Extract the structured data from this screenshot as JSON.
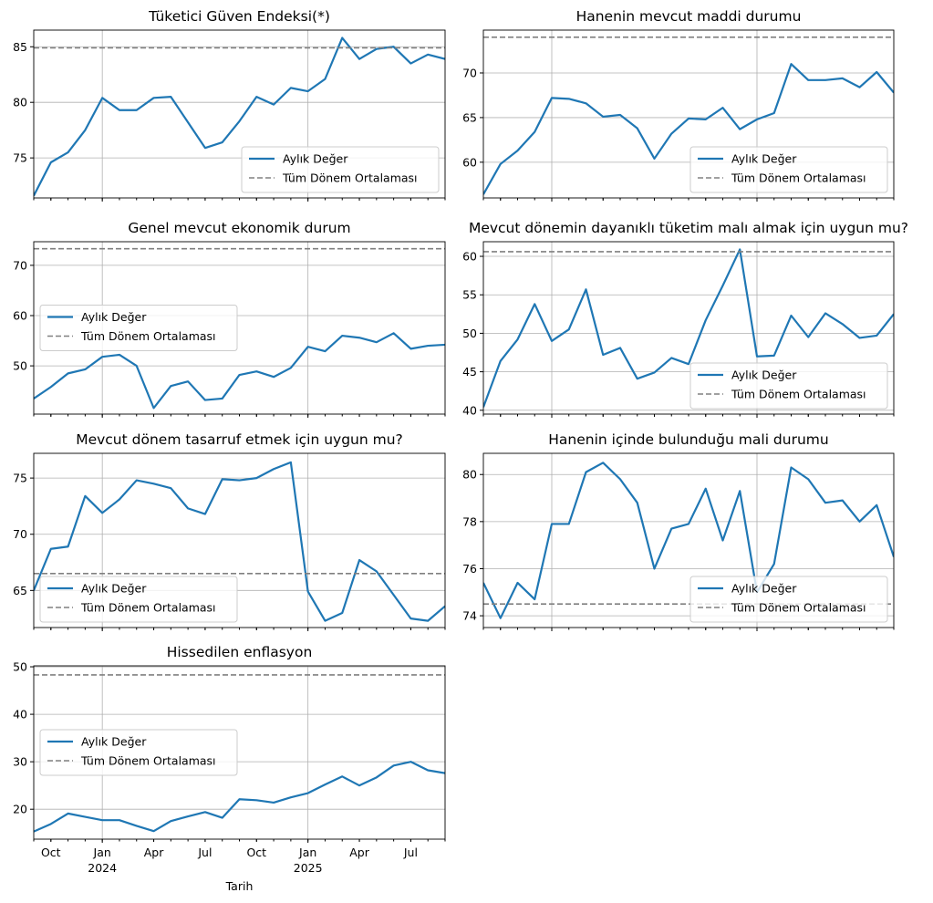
{
  "chart_data": [
    {
      "type": "line",
      "title": "Tüketici Güven Endeksi(*)",
      "x": [
        "2023-09",
        "2023-10",
        "2023-11",
        "2023-12",
        "2024-01",
        "2024-02",
        "2024-03",
        "2024-04",
        "2024-05",
        "2024-06",
        "2024-07",
        "2024-08",
        "2024-09",
        "2024-10",
        "2024-11",
        "2024-12",
        "2025-01",
        "2025-02",
        "2025-03",
        "2025-04",
        "2025-05",
        "2025-06",
        "2025-07",
        "2025-08",
        "2025-09"
      ],
      "xlim": [
        "2023-09",
        "2025-09"
      ],
      "series": [
        {
          "name": "Aylık Değer",
          "color": "#1f77b4",
          "values": [
            71.6,
            74.6,
            75.5,
            77.5,
            80.4,
            79.3,
            79.3,
            80.4,
            80.5,
            78.2,
            75.9,
            76.4,
            78.3,
            80.5,
            79.8,
            81.3,
            81.0,
            82.1,
            85.8,
            83.9,
            84.8,
            85.0,
            83.5,
            84.3,
            83.9
          ]
        },
        {
          "name": "Tüm Dönem Ortalaması",
          "color": "#808080",
          "dash": true,
          "value": 84.9
        }
      ],
      "ylim": [
        71.4,
        86.5
      ],
      "yticks": [
        75,
        80,
        85
      ],
      "grid": true,
      "legend": "lower right"
    },
    {
      "type": "line",
      "title": "Hanenin mevcut maddi durumu",
      "x": [
        "2023-09",
        "2023-10",
        "2023-11",
        "2023-12",
        "2024-01",
        "2024-02",
        "2024-03",
        "2024-04",
        "2024-05",
        "2024-06",
        "2024-07",
        "2024-08",
        "2024-09",
        "2024-10",
        "2024-11",
        "2024-12",
        "2025-01",
        "2025-02",
        "2025-03",
        "2025-04",
        "2025-05",
        "2025-06",
        "2025-07",
        "2025-08",
        "2025-09"
      ],
      "xlim": [
        "2023-09",
        "2025-09"
      ],
      "series": [
        {
          "name": "Aylık Değer",
          "color": "#1f77b4",
          "values": [
            56.4,
            59.8,
            61.3,
            63.4,
            67.2,
            67.1,
            66.6,
            65.1,
            65.3,
            63.8,
            60.4,
            63.2,
            64.9,
            64.8,
            66.1,
            63.7,
            64.8,
            65.5,
            71.0,
            69.2,
            69.2,
            69.4,
            68.4,
            70.1,
            67.8
          ]
        },
        {
          "name": "Tüm Dönem Ortalaması",
          "color": "#808080",
          "dash": true,
          "value": 74.0
        }
      ],
      "ylim": [
        56.0,
        74.8
      ],
      "yticks": [
        60,
        65,
        70
      ],
      "grid": true,
      "legend": "lower right"
    },
    {
      "type": "line",
      "title": "Genel mevcut ekonomik durum",
      "x": [
        "2023-09",
        "2023-10",
        "2023-11",
        "2023-12",
        "2024-01",
        "2024-02",
        "2024-03",
        "2024-04",
        "2024-05",
        "2024-06",
        "2024-07",
        "2024-08",
        "2024-09",
        "2024-10",
        "2024-11",
        "2024-12",
        "2025-01",
        "2025-02",
        "2025-03",
        "2025-04",
        "2025-05",
        "2025-06",
        "2025-07",
        "2025-08",
        "2025-09"
      ],
      "xlim": [
        "2023-09",
        "2025-09"
      ],
      "series": [
        {
          "name": "Aylık Değer",
          "color": "#1f77b4",
          "values": [
            43.5,
            45.8,
            48.5,
            49.3,
            51.8,
            52.2,
            50.0,
            41.6,
            46.0,
            46.9,
            43.2,
            43.5,
            48.2,
            48.9,
            47.8,
            49.6,
            53.8,
            52.9,
            56.0,
            55.6,
            54.7,
            56.5,
            53.4,
            54.0,
            54.2
          ]
        },
        {
          "name": "Tüm Dönem Ortalaması",
          "color": "#808080",
          "dash": true,
          "value": 73.3
        }
      ],
      "ylim": [
        40.4,
        74.7
      ],
      "yticks": [
        50,
        60,
        70
      ],
      "grid": true,
      "legend": "center left"
    },
    {
      "type": "line",
      "title": "Mevcut dönemin dayanıklı tüketim malı almak için uygun mu?",
      "x": [
        "2023-09",
        "2023-10",
        "2023-11",
        "2023-12",
        "2024-01",
        "2024-02",
        "2024-03",
        "2024-04",
        "2024-05",
        "2024-06",
        "2024-07",
        "2024-08",
        "2024-09",
        "2024-10",
        "2024-11",
        "2024-12",
        "2025-01",
        "2025-02",
        "2025-03",
        "2025-04",
        "2025-05",
        "2025-06",
        "2025-07",
        "2025-08",
        "2025-09"
      ],
      "xlim": [
        "2023-09",
        "2025-09"
      ],
      "series": [
        {
          "name": "Aylık Değer",
          "color": "#1f77b4",
          "values": [
            40.4,
            46.4,
            49.2,
            53.8,
            49.0,
            50.5,
            55.7,
            47.2,
            48.1,
            44.1,
            44.9,
            46.8,
            46.0,
            51.7,
            56.2,
            60.9,
            47.0,
            47.1,
            52.3,
            49.5,
            52.6,
            51.2,
            49.4,
            49.7,
            52.5
          ]
        },
        {
          "name": "Tüm Dönem Ortalaması",
          "color": "#808080",
          "dash": true,
          "value": 60.6
        }
      ],
      "ylim": [
        39.5,
        61.9
      ],
      "yticks": [
        40,
        45,
        50,
        55,
        60
      ],
      "grid": true,
      "legend": "lower right"
    },
    {
      "type": "line",
      "title": "Mevcut dönem tasarruf etmek için uygun mu?",
      "x": [
        "2023-09",
        "2023-10",
        "2023-11",
        "2023-12",
        "2024-01",
        "2024-02",
        "2024-03",
        "2024-04",
        "2024-05",
        "2024-06",
        "2024-07",
        "2024-08",
        "2024-09",
        "2024-10",
        "2024-11",
        "2024-12",
        "2025-01",
        "2025-02",
        "2025-03",
        "2025-04",
        "2025-05",
        "2025-06",
        "2025-07",
        "2025-08",
        "2025-09"
      ],
      "xlim": [
        "2023-09",
        "2025-09"
      ],
      "series": [
        {
          "name": "Aylık Değer",
          "color": "#1f77b4",
          "values": [
            65.0,
            68.7,
            68.9,
            73.4,
            71.9,
            73.1,
            74.8,
            74.5,
            74.1,
            72.3,
            71.8,
            74.9,
            74.8,
            75.0,
            75.8,
            76.4,
            64.9,
            62.3,
            63.0,
            67.7,
            66.7,
            64.6,
            62.5,
            62.3,
            63.6
          ]
        },
        {
          "name": "Tüm Dönem Ortalaması",
          "color": "#808080",
          "dash": true,
          "value": 66.5
        }
      ],
      "ylim": [
        61.7,
        77.2
      ],
      "yticks": [
        65,
        70,
        75
      ],
      "grid": true,
      "legend": "lower left"
    },
    {
      "type": "line",
      "title": "Hanenin içinde bulunduğu mali durumu",
      "x": [
        "2023-09",
        "2023-10",
        "2023-11",
        "2023-12",
        "2024-01",
        "2024-02",
        "2024-03",
        "2024-04",
        "2024-05",
        "2024-06",
        "2024-07",
        "2024-08",
        "2024-09",
        "2024-10",
        "2024-11",
        "2024-12",
        "2025-01",
        "2025-02",
        "2025-03",
        "2025-04",
        "2025-05",
        "2025-06",
        "2025-07",
        "2025-08",
        "2025-09"
      ],
      "xlim": [
        "2023-09",
        "2025-09"
      ],
      "series": [
        {
          "name": "Aylık Değer",
          "color": "#1f77b4",
          "values": [
            75.4,
            73.9,
            75.4,
            74.7,
            77.9,
            77.9,
            80.1,
            80.5,
            79.8,
            78.8,
            76.0,
            77.7,
            77.9,
            79.4,
            77.2,
            79.3,
            75.0,
            76.2,
            80.3,
            79.8,
            78.8,
            78.9,
            78.0,
            78.7,
            76.5
          ]
        },
        {
          "name": "Tüm Dönem Ortalaması",
          "color": "#808080",
          "dash": true,
          "value": 74.5
        }
      ],
      "ylim": [
        73.5,
        80.9
      ],
      "yticks": [
        74,
        76,
        78,
        80
      ],
      "grid": true,
      "legend": "lower right"
    },
    {
      "type": "line",
      "title": "Hissedilen enflasyon",
      "x": [
        "2023-09",
        "2023-10",
        "2023-11",
        "2023-12",
        "2024-01",
        "2024-02",
        "2024-03",
        "2024-04",
        "2024-05",
        "2024-06",
        "2024-07",
        "2024-08",
        "2024-09",
        "2024-10",
        "2024-11",
        "2024-12",
        "2025-01",
        "2025-02",
        "2025-03",
        "2025-04",
        "2025-05",
        "2025-06",
        "2025-07",
        "2025-08",
        "2025-09"
      ],
      "xlim": [
        "2023-09",
        "2025-09"
      ],
      "series": [
        {
          "name": "Aylık Değer",
          "color": "#1f77b4",
          "values": [
            15.3,
            16.9,
            19.1,
            18.4,
            17.7,
            17.7,
            16.5,
            15.4,
            17.5,
            18.5,
            19.4,
            18.2,
            22.1,
            21.9,
            21.4,
            22.5,
            23.4,
            25.2,
            26.9,
            25.0,
            26.7,
            29.2,
            30.0,
            28.2,
            27.6
          ]
        },
        {
          "name": "Tüm Dönem Ortalaması",
          "color": "#808080",
          "dash": true,
          "value": 48.3
        }
      ],
      "ylim": [
        13.7,
        50.2
      ],
      "yticks": [
        20,
        30,
        40,
        50
      ],
      "grid": true,
      "legend": "center left",
      "xlabel": "Tarih",
      "xticks": [
        {
          "value": "2023-10",
          "label": "Oct"
        },
        {
          "value": "2024-01",
          "label": "Jan",
          "sublabel": "2024"
        },
        {
          "value": "2024-04",
          "label": "Apr"
        },
        {
          "value": "2024-07",
          "label": "Jul"
        },
        {
          "value": "2024-10",
          "label": "Oct"
        },
        {
          "value": "2025-01",
          "label": "Jan",
          "sublabel": "2025"
        },
        {
          "value": "2025-04",
          "label": "Apr"
        },
        {
          "value": "2025-07",
          "label": "Jul"
        }
      ]
    }
  ]
}
